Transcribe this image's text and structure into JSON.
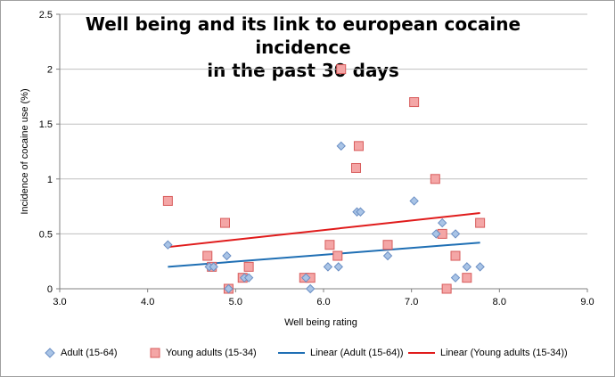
{
  "chart_data": {
    "type": "scatter",
    "title_lines": [
      "Well being and its link to european cocaine incidence",
      "in the past 30 days"
    ],
    "xlabel": "Well being rating",
    "ylabel": "Incidence of cocaine  use  (%)",
    "xlim": [
      3.0,
      9.0
    ],
    "ylim": [
      0,
      2.5
    ],
    "xticks": [
      "3.0",
      "4.0",
      "5.0",
      "6.0",
      "7.0",
      "8.0",
      "9.0"
    ],
    "yticks": [
      "0",
      "0.5",
      "1",
      "1.5",
      "2",
      "2.5"
    ],
    "xtick_values": [
      3,
      4,
      5,
      6,
      7,
      8,
      9
    ],
    "ytick_values": [
      0,
      0.5,
      1,
      1.5,
      2,
      2.5
    ],
    "grid": "horizontal",
    "legend_position": "bottom",
    "series": [
      {
        "name": "Adult (15-64)",
        "marker": "diamond",
        "color": "#a9c4e6",
        "stroke": "#6b8fc4",
        "points": [
          [
            4.23,
            0.4
          ],
          [
            4.7,
            0.2
          ],
          [
            4.75,
            0.2
          ],
          [
            4.9,
            0.3
          ],
          [
            4.92,
            0.0
          ],
          [
            5.1,
            0.1
          ],
          [
            5.15,
            0.1
          ],
          [
            5.8,
            0.1
          ],
          [
            5.85,
            0.0
          ],
          [
            6.05,
            0.2
          ],
          [
            6.17,
            0.2
          ],
          [
            6.2,
            1.3
          ],
          [
            6.38,
            0.7
          ],
          [
            6.42,
            0.7
          ],
          [
            6.73,
            0.3
          ],
          [
            7.03,
            0.8
          ],
          [
            7.28,
            0.5
          ],
          [
            7.35,
            0.6
          ],
          [
            7.5,
            0.5
          ],
          [
            7.5,
            0.1
          ],
          [
            7.63,
            0.2
          ],
          [
            7.78,
            0.2
          ]
        ]
      },
      {
        "name": "Young adults (15-34)",
        "marker": "square",
        "color": "#f4a6a6",
        "stroke": "#d85c5c",
        "points": [
          [
            4.23,
            0.8
          ],
          [
            4.68,
            0.3
          ],
          [
            4.73,
            0.2
          ],
          [
            4.88,
            0.6
          ],
          [
            4.92,
            0.0
          ],
          [
            5.08,
            0.1
          ],
          [
            5.15,
            0.2
          ],
          [
            5.78,
            0.1
          ],
          [
            5.85,
            0.1
          ],
          [
            6.07,
            0.4
          ],
          [
            6.16,
            0.3
          ],
          [
            6.2,
            2.0
          ],
          [
            6.37,
            1.1
          ],
          [
            6.4,
            1.3
          ],
          [
            6.73,
            0.4
          ],
          [
            7.03,
            1.7
          ],
          [
            7.27,
            1.0
          ],
          [
            7.35,
            0.5
          ],
          [
            7.4,
            0.0
          ],
          [
            7.5,
            0.3
          ],
          [
            7.63,
            0.1
          ],
          [
            7.78,
            0.6
          ]
        ]
      }
    ],
    "trendlines": [
      {
        "name": "Linear (Adult (15-64))",
        "color": "#1f6fb4",
        "from": [
          4.23,
          0.2
        ],
        "to": [
          7.78,
          0.42
        ]
      },
      {
        "name": "Linear (Young adults (15-34))",
        "color": "#e01b1b",
        "from": [
          4.23,
          0.38
        ],
        "to": [
          7.78,
          0.69
        ]
      }
    ]
  }
}
